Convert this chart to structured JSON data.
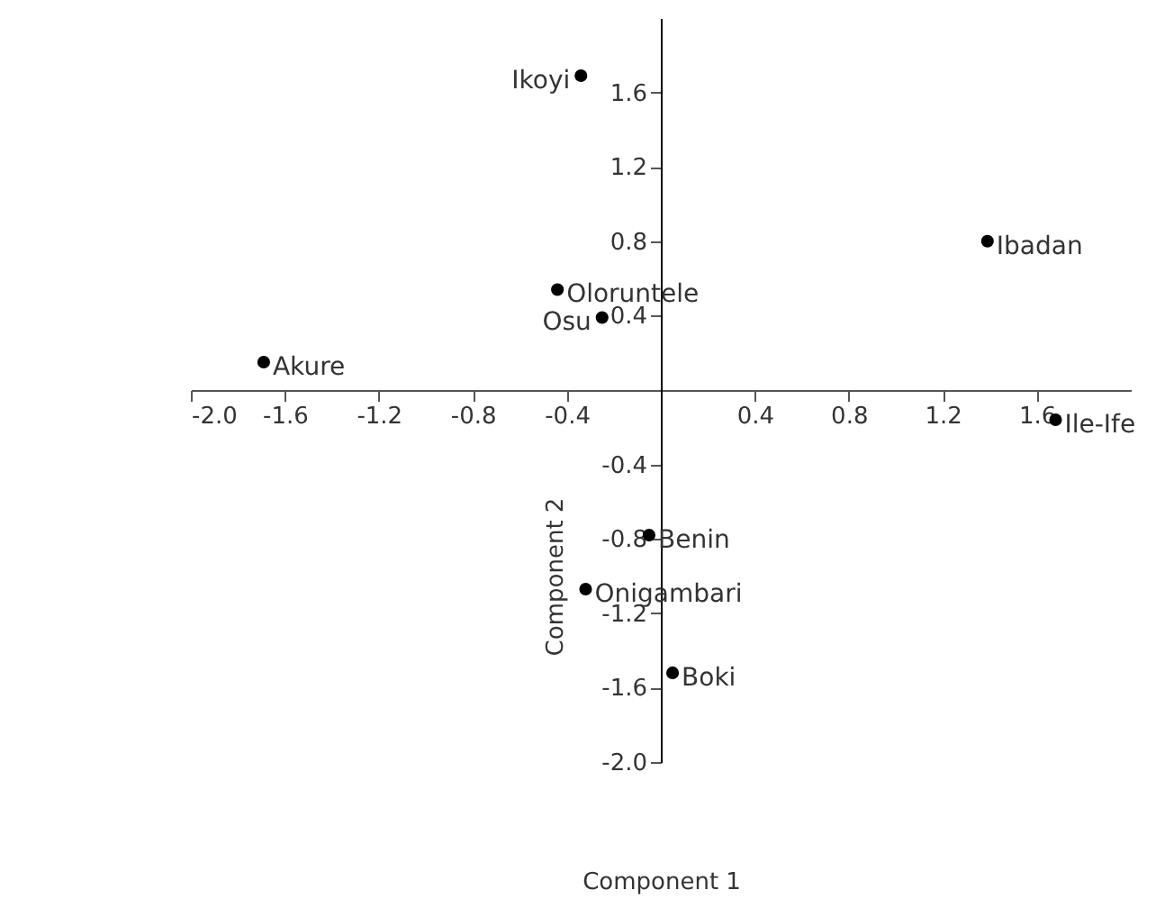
{
  "chart_data": {
    "type": "scatter",
    "xlabel": "Component 1",
    "ylabel": "Component 2",
    "series": [
      {
        "name": "Ikoyi",
        "color": "#000000",
        "x": [
          -0.34
        ],
        "values": [
          1.69
        ]
      },
      {
        "name": "Ibadan",
        "color": "#000000",
        "x": [
          1.39
        ],
        "values": [
          0.8
        ]
      },
      {
        "name": "Oloruntele",
        "color": "#000000",
        "x": [
          -0.44
        ],
        "values": [
          0.54
        ]
      },
      {
        "name": "Osu",
        "color": "#000000",
        "x": [
          -0.25
        ],
        "values": [
          0.39
        ]
      },
      {
        "name": "Akure",
        "color": "#000000",
        "x": [
          -1.69
        ],
        "values": [
          0.15
        ]
      },
      {
        "name": "Ile-Ife",
        "color": "#000000",
        "x": [
          1.68
        ],
        "values": [
          -0.16
        ]
      },
      {
        "name": "Benin",
        "color": "#000000",
        "x": [
          -0.05
        ],
        "values": [
          -0.78
        ]
      },
      {
        "name": "Onigambari",
        "color": "#000000",
        "x": [
          -0.32
        ],
        "values": [
          -1.07
        ]
      },
      {
        "name": "Boki",
        "color": "#000000",
        "x": [
          0.05
        ],
        "values": [
          -1.52
        ]
      }
    ],
    "xlim": [
      -2.0,
      2.0
    ],
    "xticks": [
      {
        "value": -2.0,
        "label": "-2.0"
      },
      {
        "value": -1.6,
        "label": "-1.6"
      },
      {
        "value": -1.2,
        "label": "-1.2"
      },
      {
        "value": -0.8,
        "label": "-0.8"
      },
      {
        "value": -0.4,
        "label": "-0.4"
      },
      {
        "value": 0.4,
        "label": "0.4"
      },
      {
        "value": 0.8,
        "label": "0.8"
      },
      {
        "value": 1.2,
        "label": "1.2"
      },
      {
        "value": 1.6,
        "label": "1.6"
      }
    ],
    "ylim": [
      -2.0,
      2.0
    ],
    "yticks": [
      {
        "value": -2.0,
        "label": "-2.0"
      },
      {
        "value": -1.6,
        "label": "-1.6"
      },
      {
        "value": -1.2,
        "label": "-1.2"
      },
      {
        "value": -0.8,
        "label": "-0.8"
      },
      {
        "value": -0.4,
        "label": "-0.4"
      },
      {
        "value": 0.4,
        "label": "0.4"
      },
      {
        "value": 0.8,
        "label": "0.8"
      },
      {
        "value": 1.2,
        "label": "1.2"
      },
      {
        "value": 1.6,
        "label": "1.6"
      }
    ],
    "grid": false,
    "marker": "circle"
  }
}
